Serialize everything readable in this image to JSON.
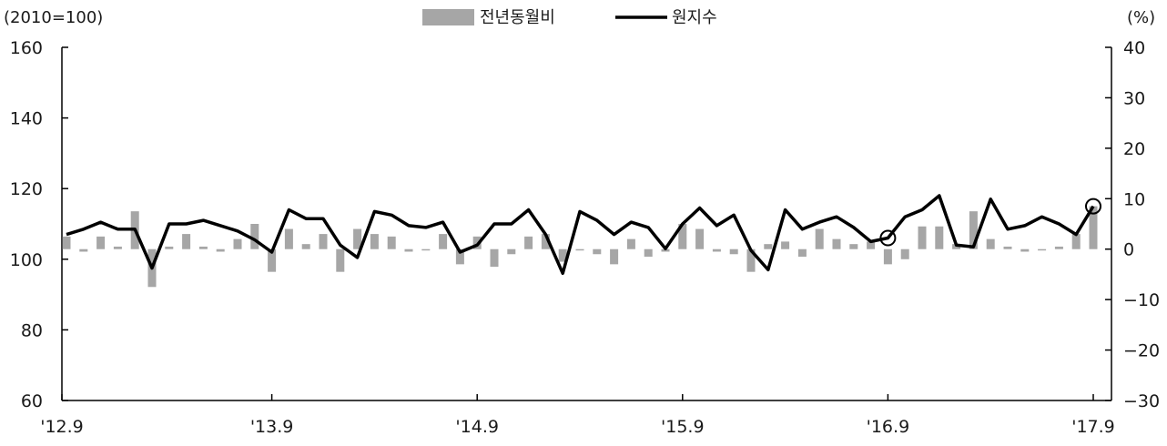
{
  "chart_data": {
    "type": "bar+line",
    "left_unit": "(2010=100)",
    "right_unit": "(%)",
    "left_ylim": [
      60,
      160
    ],
    "left_yticks": [
      60,
      80,
      100,
      120,
      140,
      160
    ],
    "right_ylim": [
      -30,
      40
    ],
    "right_yticks": [
      -30,
      -20,
      -10,
      0,
      10,
      20,
      30,
      40
    ],
    "x_tick_labels": [
      "'12.9",
      "'13.9",
      "'14.9",
      "'15.9",
      "'16.9",
      "'17.9"
    ],
    "x_tick_months": [
      0,
      12,
      24,
      36,
      48,
      60
    ],
    "legend": [
      {
        "name": "전년동월비",
        "kind": "bar",
        "color": "#a6a6a6"
      },
      {
        "name": "원지수",
        "kind": "line",
        "color": "#000000"
      }
    ],
    "series": [
      {
        "name": "전년동월비",
        "axis": "right",
        "values": [
          2.5,
          -0.5,
          2.5,
          0.5,
          7.5,
          -7.5,
          0.5,
          3,
          0.5,
          -0.5,
          2,
          5,
          -4.5,
          4,
          1,
          3,
          -4.5,
          4,
          3,
          2.5,
          -0.5,
          0,
          3,
          -3,
          2.5,
          -3.5,
          -1,
          2.5,
          3,
          -2.5,
          0,
          -1,
          -3,
          2,
          -1.5,
          -0.5,
          5,
          4,
          -0.5,
          -1,
          -4.5,
          1,
          1.5,
          -1.5,
          4,
          2,
          1,
          1.5,
          -3,
          -2,
          4.5,
          4.5,
          1,
          7.5,
          2,
          0.5,
          -0.5,
          0,
          0.5,
          3,
          8.5
        ]
      },
      {
        "name": "원지수",
        "axis": "left",
        "values": [
          107,
          108.5,
          110.5,
          108.5,
          108.5,
          97.5,
          110,
          110,
          111,
          109.5,
          108,
          105.5,
          102,
          114,
          111.5,
          111.5,
          104,
          100.5,
          113.5,
          112.5,
          109.5,
          109,
          110.5,
          102,
          104,
          110,
          110,
          114,
          107,
          96,
          113.5,
          111,
          107,
          110.5,
          109,
          103,
          110,
          114.5,
          109.5,
          112.5,
          102.5,
          97,
          114,
          108.5,
          110.5,
          112,
          109,
          105,
          106,
          112,
          114,
          118,
          104,
          103.5,
          117,
          108.5,
          109.5,
          112,
          110,
          107,
          115
        ]
      }
    ],
    "highlighted_points": [
      48,
      60
    ]
  }
}
